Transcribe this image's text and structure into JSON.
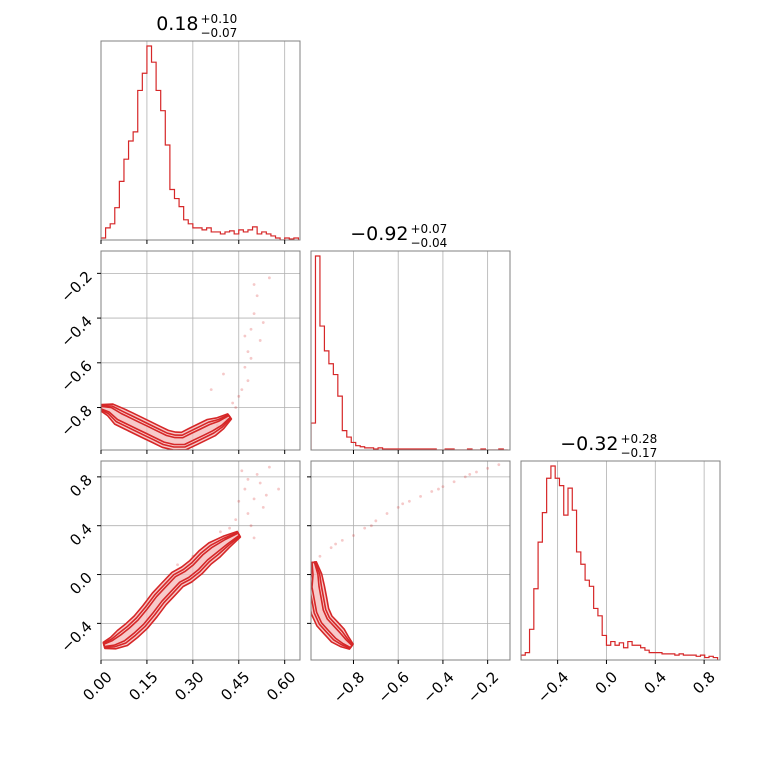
{
  "colors": {
    "series": "#d62728",
    "fill": "#f4b8b8",
    "grid": "#b0b0b0",
    "frame": "#808080"
  },
  "chart_data": {
    "type": "corner",
    "grid": true,
    "params": [
      {
        "title": {
          "value": "0.18",
          "upper": "+0.10",
          "lower": "−0.07"
        },
        "range": [
          0.0,
          0.65
        ],
        "ticks": [
          0.0,
          0.15,
          0.3,
          0.45,
          0.6
        ],
        "tick_labels": [
          "0.00",
          "0.15",
          "0.30",
          "0.45",
          "0.60"
        ]
      },
      {
        "title": {
          "value": "−0.92",
          "upper": "+0.07",
          "lower": "−0.04"
        },
        "range": [
          -0.99,
          -0.1
        ],
        "ticks": [
          -0.8,
          -0.6,
          -0.4,
          -0.2
        ],
        "tick_labels": [
          "−0.8",
          "−0.6",
          "−0.4",
          "−0.2"
        ]
      },
      {
        "title": {
          "value": "−0.32",
          "upper": "+0.28",
          "lower": "−0.17"
        },
        "range": [
          -0.7,
          0.93
        ],
        "ticks": [
          -0.4,
          0.0,
          0.4,
          0.8
        ],
        "tick_labels": [
          "−0.4",
          "0.0",
          "0.4",
          "0.8"
        ]
      }
    ],
    "histograms": [
      {
        "param": 0,
        "bin_edges": [
          0.0,
          0.015,
          0.03,
          0.045,
          0.06,
          0.075,
          0.09,
          0.105,
          0.12,
          0.135,
          0.15,
          0.165,
          0.18,
          0.195,
          0.21,
          0.225,
          0.24,
          0.255,
          0.27,
          0.285,
          0.3,
          0.315,
          0.33,
          0.345,
          0.36,
          0.375,
          0.39,
          0.405,
          0.42,
          0.435,
          0.45,
          0.465,
          0.48,
          0.495,
          0.51,
          0.525,
          0.54,
          0.555,
          0.57,
          0.585,
          0.6,
          0.615,
          0.63,
          0.645
        ],
        "counts": [
          2,
          12,
          16,
          32,
          58,
          80,
          98,
          107,
          148,
          165,
          192,
          176,
          148,
          128,
          94,
          50,
          41,
          33,
          20,
          16,
          12,
          12,
          10,
          12,
          8,
          8,
          6,
          8,
          9,
          6,
          10,
          8,
          10,
          13,
          6,
          8,
          6,
          4,
          2,
          0,
          2,
          1,
          2
        ]
      },
      {
        "param": 1,
        "bin_edges": [
          -0.99,
          -0.97,
          -0.95,
          -0.93,
          -0.91,
          -0.89,
          -0.87,
          -0.85,
          -0.83,
          -0.81,
          -0.79,
          -0.77,
          -0.75,
          -0.73,
          -0.71,
          -0.69,
          -0.67,
          -0.65,
          -0.63,
          -0.61,
          -0.59,
          -0.57,
          -0.55,
          -0.53,
          -0.51,
          -0.49,
          -0.47,
          -0.45,
          -0.43,
          -0.41,
          -0.39,
          -0.37,
          -0.35,
          -0.33,
          -0.31,
          -0.29,
          -0.27,
          -0.25,
          -0.23,
          -0.21,
          -0.19,
          -0.17,
          -0.15,
          -0.13,
          -0.11
        ],
        "counts": [
          25,
          180,
          115,
          92,
          80,
          70,
          50,
          18,
          12,
          7,
          4,
          3,
          2,
          2,
          1,
          2,
          1,
          1,
          1,
          1,
          1,
          1,
          1,
          1,
          1,
          1,
          1,
          1,
          0,
          0,
          1,
          1,
          0,
          0,
          0,
          1,
          0,
          0,
          1,
          0,
          0,
          0,
          1,
          0
        ]
      },
      {
        "param": 2,
        "bin_edges": [
          -0.7,
          -0.665,
          -0.63,
          -0.595,
          -0.56,
          -0.525,
          -0.49,
          -0.455,
          -0.42,
          -0.385,
          -0.35,
          -0.315,
          -0.28,
          -0.245,
          -0.21,
          -0.175,
          -0.14,
          -0.105,
          -0.07,
          -0.035,
          0.0,
          0.035,
          0.07,
          0.105,
          0.14,
          0.175,
          0.21,
          0.245,
          0.28,
          0.315,
          0.35,
          0.385,
          0.42,
          0.455,
          0.49,
          0.525,
          0.56,
          0.595,
          0.63,
          0.665,
          0.7,
          0.735,
          0.77,
          0.805,
          0.84,
          0.875,
          0.91
        ],
        "counts": [
          4,
          6,
          25,
          58,
          96,
          120,
          148,
          158,
          148,
          142,
          118,
          140,
          122,
          88,
          78,
          65,
          60,
          42,
          36,
          20,
          12,
          15,
          12,
          14,
          10,
          15,
          12,
          12,
          10,
          8,
          6,
          6,
          6,
          5,
          5,
          5,
          4,
          5,
          4,
          4,
          4,
          3,
          4,
          2,
          3,
          2
        ]
      }
    ],
    "pairs": [
      {
        "x_param": 0,
        "y_param": 1,
        "ridge": [
          [
            0.0,
            -0.8
          ],
          [
            0.03,
            -0.81
          ],
          [
            0.06,
            -0.84
          ],
          [
            0.09,
            -0.86
          ],
          [
            0.12,
            -0.88
          ],
          [
            0.15,
            -0.9
          ],
          [
            0.18,
            -0.92
          ],
          [
            0.21,
            -0.94
          ],
          [
            0.24,
            -0.95
          ],
          [
            0.27,
            -0.95
          ],
          [
            0.3,
            -0.93
          ],
          [
            0.33,
            -0.91
          ],
          [
            0.36,
            -0.89
          ],
          [
            0.39,
            -0.87
          ],
          [
            0.42,
            -0.84
          ]
        ],
        "scatter_tail": [
          [
            0.44,
            -0.8
          ],
          [
            0.46,
            -0.72
          ],
          [
            0.47,
            -0.62
          ],
          [
            0.48,
            -0.55
          ],
          [
            0.49,
            -0.45
          ],
          [
            0.5,
            -0.38
          ],
          [
            0.51,
            -0.3
          ],
          [
            0.5,
            -0.25
          ],
          [
            0.48,
            -0.68
          ],
          [
            0.52,
            -0.5
          ],
          [
            0.45,
            -0.75
          ],
          [
            0.53,
            -0.42
          ],
          [
            0.49,
            -0.58
          ],
          [
            0.38,
            -0.88
          ],
          [
            0.41,
            -0.85
          ],
          [
            0.55,
            -0.22
          ],
          [
            0.47,
            -0.48
          ],
          [
            0.43,
            -0.78
          ],
          [
            0.4,
            -0.65
          ],
          [
            0.36,
            -0.72
          ]
        ]
      },
      {
        "x_param": 0,
        "y_param": 2,
        "ridge": [
          [
            0.01,
            -0.58
          ],
          [
            0.04,
            -0.56
          ],
          [
            0.07,
            -0.52
          ],
          [
            0.1,
            -0.46
          ],
          [
            0.13,
            -0.39
          ],
          [
            0.16,
            -0.3
          ],
          [
            0.19,
            -0.2
          ],
          [
            0.22,
            -0.12
          ],
          [
            0.25,
            -0.04
          ],
          [
            0.28,
            0.0
          ],
          [
            0.31,
            0.06
          ],
          [
            0.34,
            0.14
          ],
          [
            0.37,
            0.2
          ],
          [
            0.41,
            0.27
          ],
          [
            0.45,
            0.33
          ]
        ],
        "scatter_tail": [
          [
            0.48,
            0.5
          ],
          [
            0.5,
            0.62
          ],
          [
            0.52,
            0.75
          ],
          [
            0.46,
            0.85
          ],
          [
            0.49,
            0.4
          ],
          [
            0.53,
            0.55
          ],
          [
            0.47,
            0.7
          ],
          [
            0.51,
            0.82
          ],
          [
            0.44,
            0.45
          ],
          [
            0.54,
            0.65
          ],
          [
            0.42,
            0.38
          ],
          [
            0.5,
            0.3
          ],
          [
            0.36,
            0.25
          ],
          [
            0.39,
            0.35
          ],
          [
            0.55,
            0.88
          ],
          [
            0.45,
            0.6
          ],
          [
            0.3,
            0.15
          ],
          [
            0.25,
            0.08
          ],
          [
            0.58,
            0.7
          ],
          [
            0.48,
            0.78
          ]
        ]
      },
      {
        "x_param": 1,
        "y_param": 2,
        "ridge": [
          [
            -0.98,
            0.1
          ],
          [
            -0.97,
            0.0
          ],
          [
            -0.97,
            -0.1
          ],
          [
            -0.96,
            -0.2
          ],
          [
            -0.95,
            -0.3
          ],
          [
            -0.93,
            -0.38
          ],
          [
            -0.9,
            -0.44
          ],
          [
            -0.87,
            -0.5
          ],
          [
            -0.84,
            -0.55
          ],
          [
            -0.81,
            -0.59
          ]
        ],
        "scatter_tail": [
          [
            -0.95,
            0.15
          ],
          [
            -0.9,
            0.22
          ],
          [
            -0.85,
            0.28
          ],
          [
            -0.8,
            0.32
          ],
          [
            -0.75,
            0.38
          ],
          [
            -0.7,
            0.44
          ],
          [
            -0.65,
            0.5
          ],
          [
            -0.6,
            0.55
          ],
          [
            -0.55,
            0.6
          ],
          [
            -0.5,
            0.64
          ],
          [
            -0.45,
            0.68
          ],
          [
            -0.4,
            0.72
          ],
          [
            -0.35,
            0.76
          ],
          [
            -0.3,
            0.8
          ],
          [
            -0.25,
            0.84
          ],
          [
            -0.2,
            0.87
          ],
          [
            -0.15,
            0.9
          ],
          [
            -0.88,
            0.25
          ],
          [
            -0.72,
            0.4
          ],
          [
            -0.58,
            0.58
          ],
          [
            -0.42,
            0.7
          ],
          [
            -0.28,
            0.82
          ]
        ]
      }
    ]
  }
}
